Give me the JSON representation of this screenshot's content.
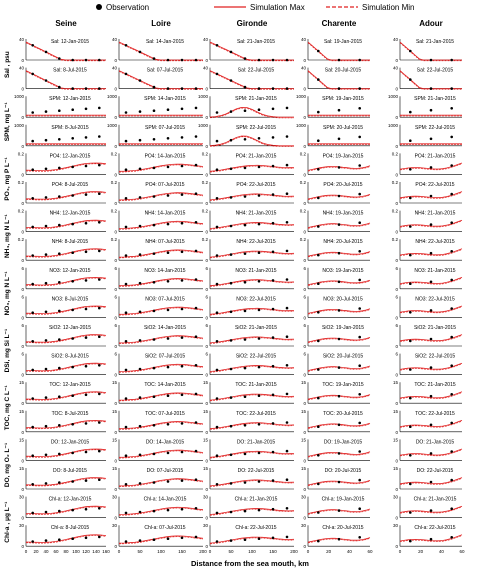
{
  "legend": {
    "observation": "Observation",
    "sim_max": "Simulation Max",
    "sim_min": "Simulation Min",
    "colors": {
      "observation": "#000000",
      "sim_max": "#e02020",
      "sim_min": "#e02020"
    }
  },
  "xlabel": "Distance from the sea mouth, km",
  "columns": [
    {
      "name": "Seine",
      "xlim": [
        0,
        200
      ],
      "xticks": [
        "0",
        "20",
        "40",
        "60",
        "80",
        "100",
        "120",
        "140",
        "160"
      ]
    },
    {
      "name": "Loire",
      "xlim": [
        0,
        200
      ],
      "xticks": [
        "0",
        "50",
        "100",
        "150",
        "200"
      ]
    },
    {
      "name": "Gironde",
      "xlim": [
        0,
        200
      ],
      "xticks": [
        "0",
        "50",
        "100",
        "150",
        "200"
      ]
    },
    {
      "name": "Charente",
      "xlim": [
        0,
        60
      ],
      "xticks": [
        "0",
        "20",
        "40",
        "60"
      ]
    },
    {
      "name": "Adour",
      "xlim": [
        0,
        60
      ],
      "xticks": [
        "0",
        "20",
        "40",
        "60"
      ]
    }
  ],
  "variables": [
    {
      "ylabel": "Sal , psu",
      "short": "Sal",
      "ymax_label": "40",
      "ticks": [
        "0",
        "20",
        "40"
      ]
    },
    {
      "ylabel": "SPM, mg L⁻¹",
      "short": "SPM",
      "ymax_label": "1000",
      "ticks": [
        "0",
        "500",
        "1000"
      ]
    },
    {
      "ylabel": "PO₄, mg P L⁻¹",
      "short": "PO4",
      "ymax_label": "0.2",
      "ticks": [
        "0",
        "0.1",
        "0.2"
      ]
    },
    {
      "ylabel": "NH₄, mg N L⁻¹",
      "short": "NH4",
      "ymax_label": "0.2",
      "ticks": [
        "0",
        "0.1",
        "0.2"
      ]
    },
    {
      "ylabel": "NO₃, mg N L⁻¹",
      "short": "NO3",
      "ymax_label": "6",
      "ticks": [
        "0",
        "2",
        "4",
        "6"
      ]
    },
    {
      "ylabel": "DSi, mg Si L⁻¹",
      "short": "SiO2",
      "ymax_label": "6",
      "ticks": [
        "0",
        "2",
        "4",
        "6"
      ]
    },
    {
      "ylabel": "TOC, mg C L⁻¹",
      "short": "TOC",
      "ymax_label": "15",
      "ticks": [
        "0",
        "5",
        "10",
        "15"
      ]
    },
    {
      "ylabel": "DO, mg O₂ L⁻¹",
      "short": "DO",
      "ymax_label": "15",
      "ticks": [
        "0",
        "5",
        "10",
        "15"
      ]
    },
    {
      "ylabel": "Chl-a , μg L⁻¹",
      "short": "Chl-a",
      "ymax_label": "30",
      "ticks": [
        "0",
        "10",
        "20",
        "30"
      ]
    }
  ],
  "dates": [
    [
      "12-Jan-2015",
      "14-Jan-2015",
      "21-Jan-2015",
      "19-Jan-2015",
      "21-Jan-2015"
    ],
    [
      "8-Jul-2015",
      "07-Jul-2015",
      "22-Jul-2015",
      "20-Jul-2015",
      "22-Jul-2015"
    ]
  ],
  "chart_data": {
    "type": "line",
    "description_layout": "grid of 18 rows (9 variables x 2 campaigns) by 5 estuaries",
    "series_per_panel": [
      "Observation (points)",
      "Simulation Max (solid line)",
      "Simulation Min (dashed line)"
    ]
  }
}
